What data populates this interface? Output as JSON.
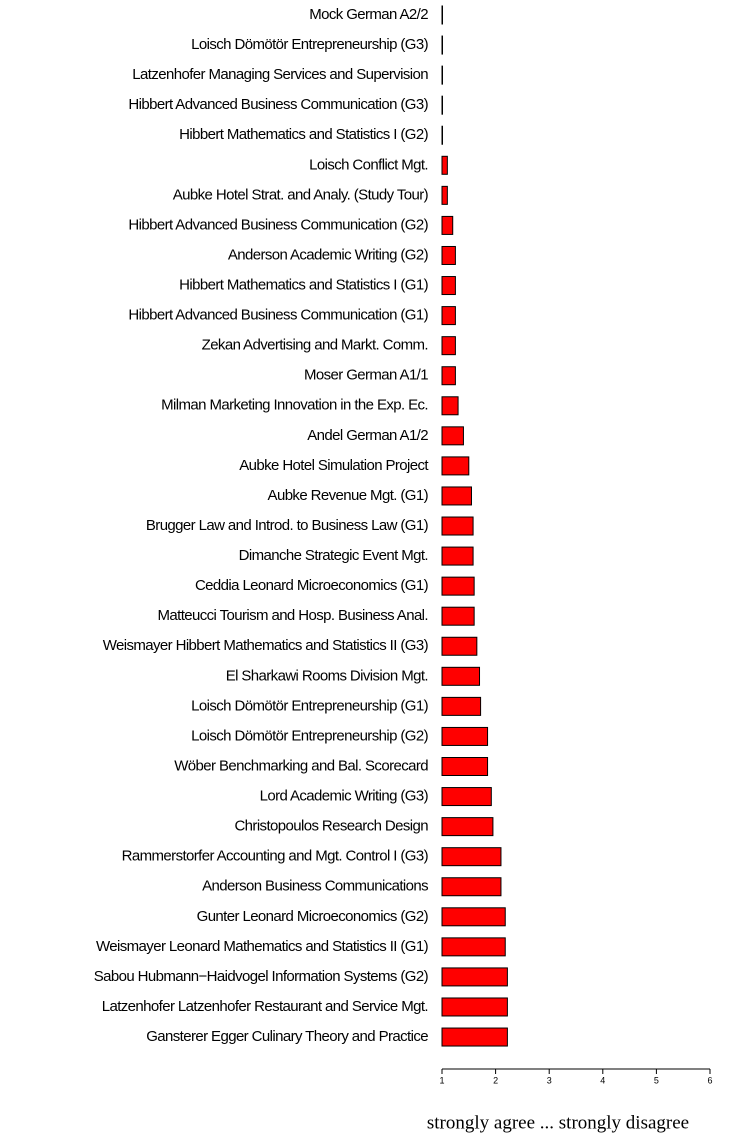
{
  "chart_data": {
    "type": "barh",
    "categories": [
      "Mock  German A2/2",
      "Loisch Dömötör Entrepreneurship (G3)",
      "Latzenhofer  Managing Services and Supervision",
      "Hibbert  Advanced Business Communication (G3)",
      "Hibbert  Mathematics and Statistics I (G2)",
      "Loisch  Conflict Mgt.",
      "Aubke  Hotel Strat. and Analy. (Study Tour)",
      "Hibbert  Advanced Business Communication (G2)",
      "Anderson  Academic Writing (G2)",
      "Hibbert  Mathematics and Statistics I (G1)",
      "Hibbert  Advanced Business Communication (G1)",
      "Zekan  Advertising and Markt. Comm.",
      "Moser  German A1/1",
      "Milman  Marketing Innovation in the Exp. Ec.",
      "Andel  German A1/2",
      "Aubke  Hotel Simulation Project",
      "Aubke  Revenue Mgt. (G1)",
      "Brugger  Law and Introd. to Business Law (G1)",
      "Dimanche  Strategic Event Mgt.",
      "Ceddia Leonard Microeconomics (G1)",
      "Matteucci  Tourism and Hosp. Business Anal.",
      "Weismayer Hibbert Mathematics and Statistics II (G3)",
      "El Sharkawi  Rooms Division Mgt.",
      "Loisch Dömötör Entrepreneurship (G1)",
      "Loisch Dömötör Entrepreneurship (G2)",
      "Wöber  Benchmarking and Bal. Scorecard",
      "Lord  Academic Writing (G3)",
      "Christopoulos  Research Design",
      "Rammerstorfer  Accounting and Mgt. Control I (G3)",
      "Anderson  Business Communications",
      "Gunter Leonard Microeconomics (G2)",
      "Weismayer Leonard Mathematics and Statistics II (G1)",
      "Sabou Hubmann−Haidvogel Information Systems (G2)",
      "Latzenhofer Latzenhofer Restaurant and Service Mgt.",
      "Gansterer Egger Culinary Theory and Practice"
    ],
    "values": [
      1.0,
      1.0,
      1.0,
      1.0,
      1.0,
      1.1,
      1.1,
      1.2,
      1.25,
      1.25,
      1.25,
      1.25,
      1.25,
      1.3,
      1.4,
      1.5,
      1.55,
      1.58,
      1.58,
      1.6,
      1.6,
      1.65,
      1.7,
      1.72,
      1.85,
      1.85,
      1.92,
      1.95,
      2.1,
      2.1,
      2.18,
      2.18,
      2.22,
      2.22,
      2.22
    ],
    "color": "#ff0000",
    "xlim": [
      1,
      6
    ],
    "xticks": [
      1,
      2,
      3,
      4,
      5,
      6
    ],
    "x_label": "strongly agree ... strongly disagree"
  }
}
